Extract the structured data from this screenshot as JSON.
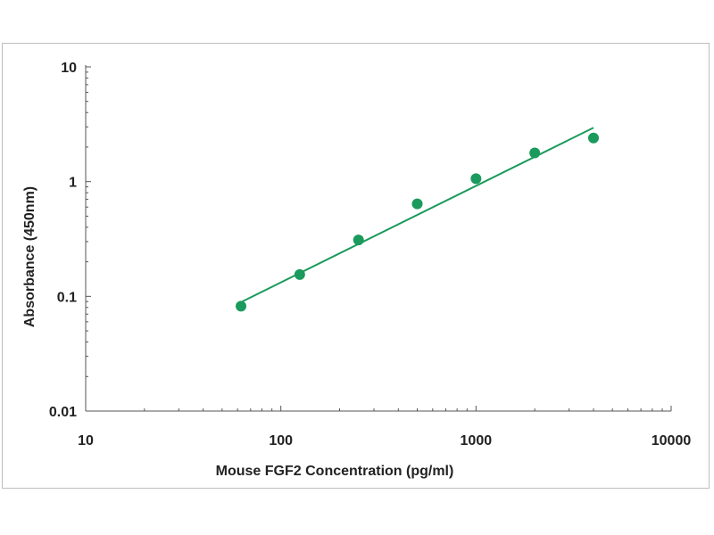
{
  "chart_data": {
    "type": "scatter",
    "title": "",
    "xlabel": "Mouse FGF2 Concentration (pg/ml)",
    "ylabel": "Absorbance (450nm)",
    "x_scale": "log",
    "y_scale": "log",
    "xlim": [
      10,
      10000
    ],
    "ylim": [
      0.01,
      10
    ],
    "x_ticks": [
      10,
      100,
      1000,
      10000
    ],
    "x_tick_labels": [
      "10",
      "100",
      "1000",
      "10000"
    ],
    "y_ticks": [
      0.01,
      0.1,
      1,
      10
    ],
    "y_tick_labels": [
      "0.01",
      "0.1",
      "1",
      "10"
    ],
    "grid": false,
    "legend": "none",
    "series": [
      {
        "x": [
          62.5,
          125,
          250,
          500,
          1000,
          2000,
          4000
        ],
        "y": [
          0.082,
          0.155,
          0.31,
          0.64,
          1.06,
          1.78,
          2.4
        ],
        "marker": "circle",
        "color": "#1a9a5c"
      }
    ],
    "fit_line": {
      "x": [
        62.5,
        4000
      ],
      "y": [
        0.089,
        2.95
      ],
      "color": "#1a9a5c"
    }
  }
}
